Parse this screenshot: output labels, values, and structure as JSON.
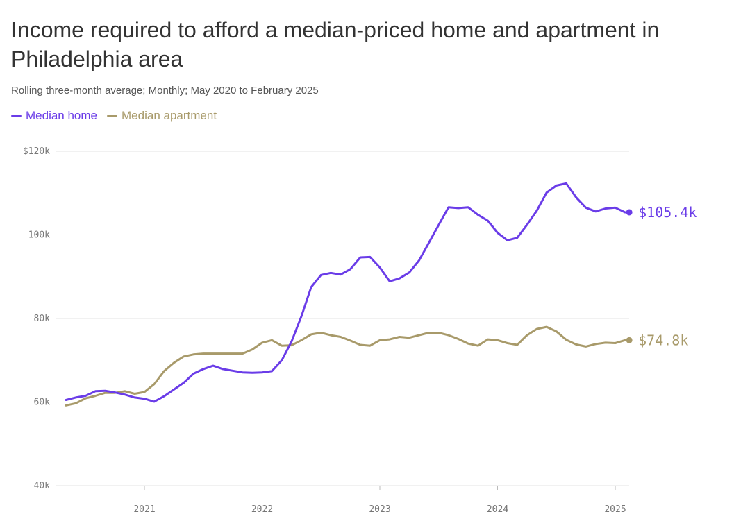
{
  "title": "Income required to afford a median-priced home and apartment in Philadelphia area",
  "subtitle": "Rolling three-month average; Monthly; May 2020 to February 2025",
  "colors": {
    "home": "#6a3ce8",
    "apartment": "#a89a6a",
    "grid": "#e3e3e3"
  },
  "chart_data": {
    "type": "line",
    "title": "Income required to afford a median-priced home and apartment in Philadelphia area",
    "subtitle": "Rolling three-month average; Monthly; May 2020 to February 2025",
    "xlabel": "",
    "ylabel": "",
    "ylim": [
      40,
      120
    ],
    "yticks": [
      40,
      60,
      80,
      100,
      120
    ],
    "ytick_labels": [
      "40k",
      "60k",
      "80k",
      "100k",
      "$120k"
    ],
    "xticks": [
      "2021",
      "2022",
      "2023",
      "2024",
      "2025"
    ],
    "grid": true,
    "legend_position": "top-left",
    "x": [
      "2020-05",
      "2020-06",
      "2020-07",
      "2020-08",
      "2020-09",
      "2020-10",
      "2020-11",
      "2020-12",
      "2021-01",
      "2021-02",
      "2021-03",
      "2021-04",
      "2021-05",
      "2021-06",
      "2021-07",
      "2021-08",
      "2021-09",
      "2021-10",
      "2021-11",
      "2021-12",
      "2022-01",
      "2022-02",
      "2022-03",
      "2022-04",
      "2022-05",
      "2022-06",
      "2022-07",
      "2022-08",
      "2022-09",
      "2022-10",
      "2022-11",
      "2022-12",
      "2023-01",
      "2023-02",
      "2023-03",
      "2023-04",
      "2023-05",
      "2023-06",
      "2023-07",
      "2023-08",
      "2023-09",
      "2023-10",
      "2023-11",
      "2023-12",
      "2024-01",
      "2024-02",
      "2024-03",
      "2024-04",
      "2024-05",
      "2024-06",
      "2024-07",
      "2024-08",
      "2024-09",
      "2024-10",
      "2024-11",
      "2024-12",
      "2025-01",
      "2025-02"
    ],
    "series": [
      {
        "name": "Median home",
        "end_label": "$105.4k",
        "values": [
          60.5,
          61.1,
          61.5,
          62.6,
          62.7,
          62.3,
          61.8,
          61.1,
          60.8,
          60.1,
          61.4,
          63.0,
          64.6,
          66.8,
          67.9,
          68.7,
          67.9,
          67.5,
          67.1,
          67.0,
          67.1,
          67.4,
          70.0,
          74.5,
          80.5,
          87.5,
          90.4,
          90.9,
          90.5,
          91.8,
          94.6,
          94.7,
          92.2,
          88.9,
          89.6,
          91.0,
          93.9,
          98.1,
          102.4,
          106.6,
          106.4,
          106.6,
          104.8,
          103.4,
          100.5,
          98.7,
          99.3,
          102.4,
          105.8,
          110.1,
          111.8,
          112.3,
          109.0,
          106.5,
          105.6,
          106.3,
          106.5,
          105.4
        ]
      },
      {
        "name": "Median apartment",
        "end_label": "$74.8k",
        "values": [
          59.2,
          59.7,
          60.9,
          61.5,
          62.2,
          62.2,
          62.6,
          62.0,
          62.4,
          64.3,
          67.4,
          69.4,
          70.9,
          71.4,
          71.6,
          71.6,
          71.6,
          71.6,
          71.6,
          72.6,
          74.2,
          74.8,
          73.5,
          73.6,
          74.8,
          76.2,
          76.6,
          76.0,
          75.6,
          74.7,
          73.7,
          73.5,
          74.8,
          75.0,
          75.6,
          75.4,
          76.0,
          76.6,
          76.6,
          76.0,
          75.1,
          74.0,
          73.5,
          75.0,
          74.8,
          74.1,
          73.7,
          76.0,
          77.5,
          78.0,
          76.9,
          74.9,
          73.8,
          73.3,
          73.9,
          74.2,
          74.1,
          74.8
        ]
      }
    ]
  }
}
